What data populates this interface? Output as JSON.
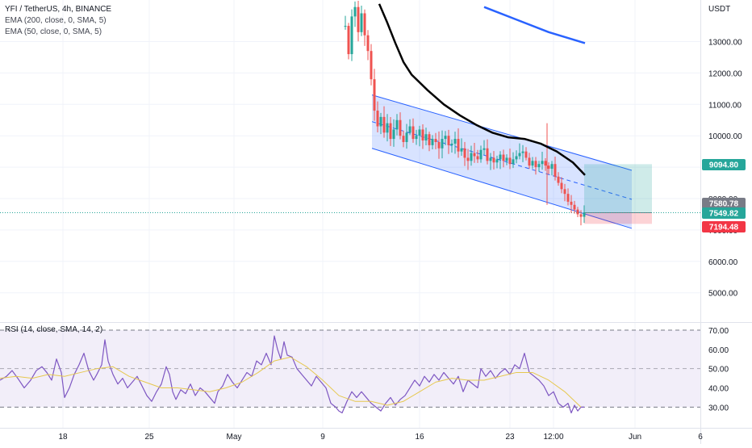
{
  "chart_data": [
    {
      "type": "candlestick",
      "title": "YFI / TetherUS, 4h, BINANCE",
      "indicators": [
        "EMA (200, close, 0, SMA, 5)",
        "EMA (50, close, 0, SMA, 5)"
      ],
      "currency": "USDT",
      "x_labels": [
        "18",
        "25",
        "May",
        "9",
        "16",
        "23",
        "12:00",
        "Jun",
        "6"
      ],
      "y_ticks": [
        5000,
        6000,
        7000,
        8000,
        9000,
        10000,
        11000,
        12000,
        13000
      ],
      "y_tick_labels": [
        "5000.00",
        "6000.00",
        "7000.00",
        "8000.00",
        "9000.00",
        "10000.00",
        "11000.00",
        "12000.00",
        "13000.00"
      ],
      "ylim": [
        3800,
        14000
      ],
      "price_badges": [
        {
          "label": "9094.80",
          "value": 9094.8,
          "color": "#26a69a"
        },
        {
          "label": "7580.78",
          "value": 7580.78,
          "color": "#787b86"
        },
        {
          "label": "7549.82",
          "value": 7549.82,
          "color": "#26a69a"
        },
        {
          "label": "7194.48",
          "value": 7194.48,
          "color": "#f23645"
        }
      ],
      "ema200": [
        [
          600,
          14100
        ],
        [
          640,
          13700
        ],
        [
          680,
          13300
        ],
        [
          725,
          12950
        ]
      ],
      "ema50": [
        [
          470,
          14200
        ],
        [
          480,
          13600
        ],
        [
          490,
          12950
        ],
        [
          500,
          12350
        ],
        [
          510,
          11950
        ],
        [
          530,
          11450
        ],
        [
          550,
          11000
        ],
        [
          570,
          10650
        ],
        [
          590,
          10350
        ],
        [
          610,
          10100
        ],
        [
          630,
          9950
        ],
        [
          650,
          9900
        ],
        [
          670,
          9750
        ],
        [
          690,
          9500
        ],
        [
          710,
          9150
        ],
        [
          725,
          8750
        ]
      ],
      "channel": {
        "upper": [
          [
            461,
            11300
          ],
          [
            783,
            8900
          ]
        ],
        "lower": [
          [
            461,
            9600
          ],
          [
            783,
            7050
          ]
        ]
      },
      "position": {
        "entry": 7549.82,
        "target": 9094.8,
        "stop": 7194.48
      },
      "last_price": 7549.82
    },
    {
      "type": "line",
      "title": "RSI (14, close, SMA, 14, 2)",
      "y_ticks": [
        30,
        40,
        50,
        60,
        70
      ],
      "y_tick_labels": [
        "30.00",
        "40.00",
        "50.00",
        "60.00",
        "70.00"
      ],
      "ylim": [
        25,
        75
      ],
      "band": [
        30,
        70
      ],
      "midline": 50,
      "series": [
        {
          "color": "#7e57c2",
          "values": [
            [
              0,
              44
            ],
            [
              8,
              46
            ],
            [
              15,
              49
            ],
            [
              22,
              45
            ],
            [
              30,
              40
            ],
            [
              38,
              44
            ],
            [
              45,
              49
            ],
            [
              52,
              51
            ],
            [
              58,
              48
            ],
            [
              64,
              44
            ],
            [
              70,
              55
            ],
            [
              76,
              48
            ],
            [
              80,
              35
            ],
            [
              86,
              40
            ],
            [
              92,
              47
            ],
            [
              98,
              52
            ],
            [
              104,
              58
            ],
            [
              110,
              49
            ],
            [
              116,
              44
            ],
            [
              120,
              47
            ],
            [
              126,
              52
            ],
            [
              130,
              65
            ],
            [
              134,
              54
            ],
            [
              140,
              47
            ],
            [
              146,
              42
            ],
            [
              152,
              45
            ],
            [
              158,
              40
            ],
            [
              164,
              43
            ],
            [
              170,
              46
            ],
            [
              176,
              41
            ],
            [
              182,
              36
            ],
            [
              188,
              33
            ],
            [
              194,
              38
            ],
            [
              200,
              42
            ],
            [
              206,
              51
            ],
            [
              210,
              47
            ],
            [
              214,
              38
            ],
            [
              218,
              34
            ],
            [
              224,
              39
            ],
            [
              230,
              37
            ],
            [
              236,
              42
            ],
            [
              242,
              36
            ],
            [
              248,
              40
            ],
            [
              254,
              38
            ],
            [
              260,
              35
            ],
            [
              266,
              32
            ],
            [
              270,
              38
            ],
            [
              276,
              41
            ],
            [
              282,
              47
            ],
            [
              288,
              43
            ],
            [
              294,
              40
            ],
            [
              300,
              44
            ],
            [
              306,
              48
            ],
            [
              312,
              46
            ],
            [
              318,
              54
            ],
            [
              324,
              52
            ],
            [
              330,
              58
            ],
            [
              336,
              52
            ],
            [
              340,
              67
            ],
            [
              344,
              60
            ],
            [
              348,
              55
            ],
            [
              352,
              64
            ],
            [
              356,
              57
            ],
            [
              362,
              56
            ],
            [
              368,
              50
            ],
            [
              374,
              47
            ],
            [
              380,
              44
            ],
            [
              386,
              41
            ],
            [
              392,
              46
            ],
            [
              398,
              43
            ],
            [
              404,
              40
            ],
            [
              410,
              32
            ],
            [
              416,
              30
            ],
            [
              420,
              28
            ],
            [
              424,
              27
            ],
            [
              430,
              33
            ],
            [
              436,
              38
            ],
            [
              442,
              35
            ],
            [
              448,
              38
            ],
            [
              454,
              35
            ],
            [
              460,
              32
            ],
            [
              466,
              30
            ],
            [
              472,
              28
            ],
            [
              478,
              32
            ],
            [
              484,
              35
            ],
            [
              490,
              31
            ],
            [
              496,
              34
            ],
            [
              502,
              36
            ],
            [
              508,
              40
            ],
            [
              514,
              44
            ],
            [
              520,
              41
            ],
            [
              526,
              46
            ],
            [
              532,
              43
            ],
            [
              538,
              47
            ],
            [
              544,
              44
            ],
            [
              550,
              48
            ],
            [
              556,
              45
            ],
            [
              562,
              42
            ],
            [
              568,
              46
            ],
            [
              574,
              38
            ],
            [
              580,
              44
            ],
            [
              586,
              42
            ],
            [
              592,
              40
            ],
            [
              596,
              50
            ],
            [
              602,
              46
            ],
            [
              608,
              49
            ],
            [
              614,
              45
            ],
            [
              620,
              48
            ],
            [
              626,
              50
            ],
            [
              632,
              47
            ],
            [
              638,
              52
            ],
            [
              644,
              50
            ],
            [
              650,
              58
            ],
            [
              656,
              48
            ],
            [
              662,
              46
            ],
            [
              668,
              44
            ],
            [
              674,
              41
            ],
            [
              680,
              36
            ],
            [
              686,
              38
            ],
            [
              692,
              32
            ],
            [
              698,
              30
            ],
            [
              704,
              32
            ],
            [
              708,
              27
            ],
            [
              712,
              31
            ],
            [
              716,
              28
            ],
            [
              720,
              30
            ],
            [
              724,
              30
            ]
          ]
        },
        {
          "color": "#e6c84f",
          "values": [
            [
              0,
              45
            ],
            [
              20,
              46
            ],
            [
              40,
              45
            ],
            [
              60,
              47
            ],
            [
              80,
              46
            ],
            [
              100,
              48
            ],
            [
              120,
              50
            ],
            [
              140,
              51
            ],
            [
              160,
              46
            ],
            [
              180,
              43
            ],
            [
              200,
              40
            ],
            [
              220,
              40
            ],
            [
              240,
              39
            ],
            [
              260,
              38
            ],
            [
              280,
              40
            ],
            [
              300,
              43
            ],
            [
              320,
              48
            ],
            [
              340,
              54
            ],
            [
              360,
              56
            ],
            [
              380,
              51
            ],
            [
              400,
              44
            ],
            [
              420,
              36
            ],
            [
              440,
              33
            ],
            [
              460,
              33
            ],
            [
              480,
              31
            ],
            [
              500,
              33
            ],
            [
              520,
              38
            ],
            [
              540,
              43
            ],
            [
              560,
              45
            ],
            [
              580,
              44
            ],
            [
              600,
              44
            ],
            [
              620,
              46
            ],
            [
              640,
              48
            ],
            [
              660,
              48
            ],
            [
              680,
              44
            ],
            [
              700,
              38
            ],
            [
              720,
              30
            ]
          ]
        }
      ]
    }
  ]
}
